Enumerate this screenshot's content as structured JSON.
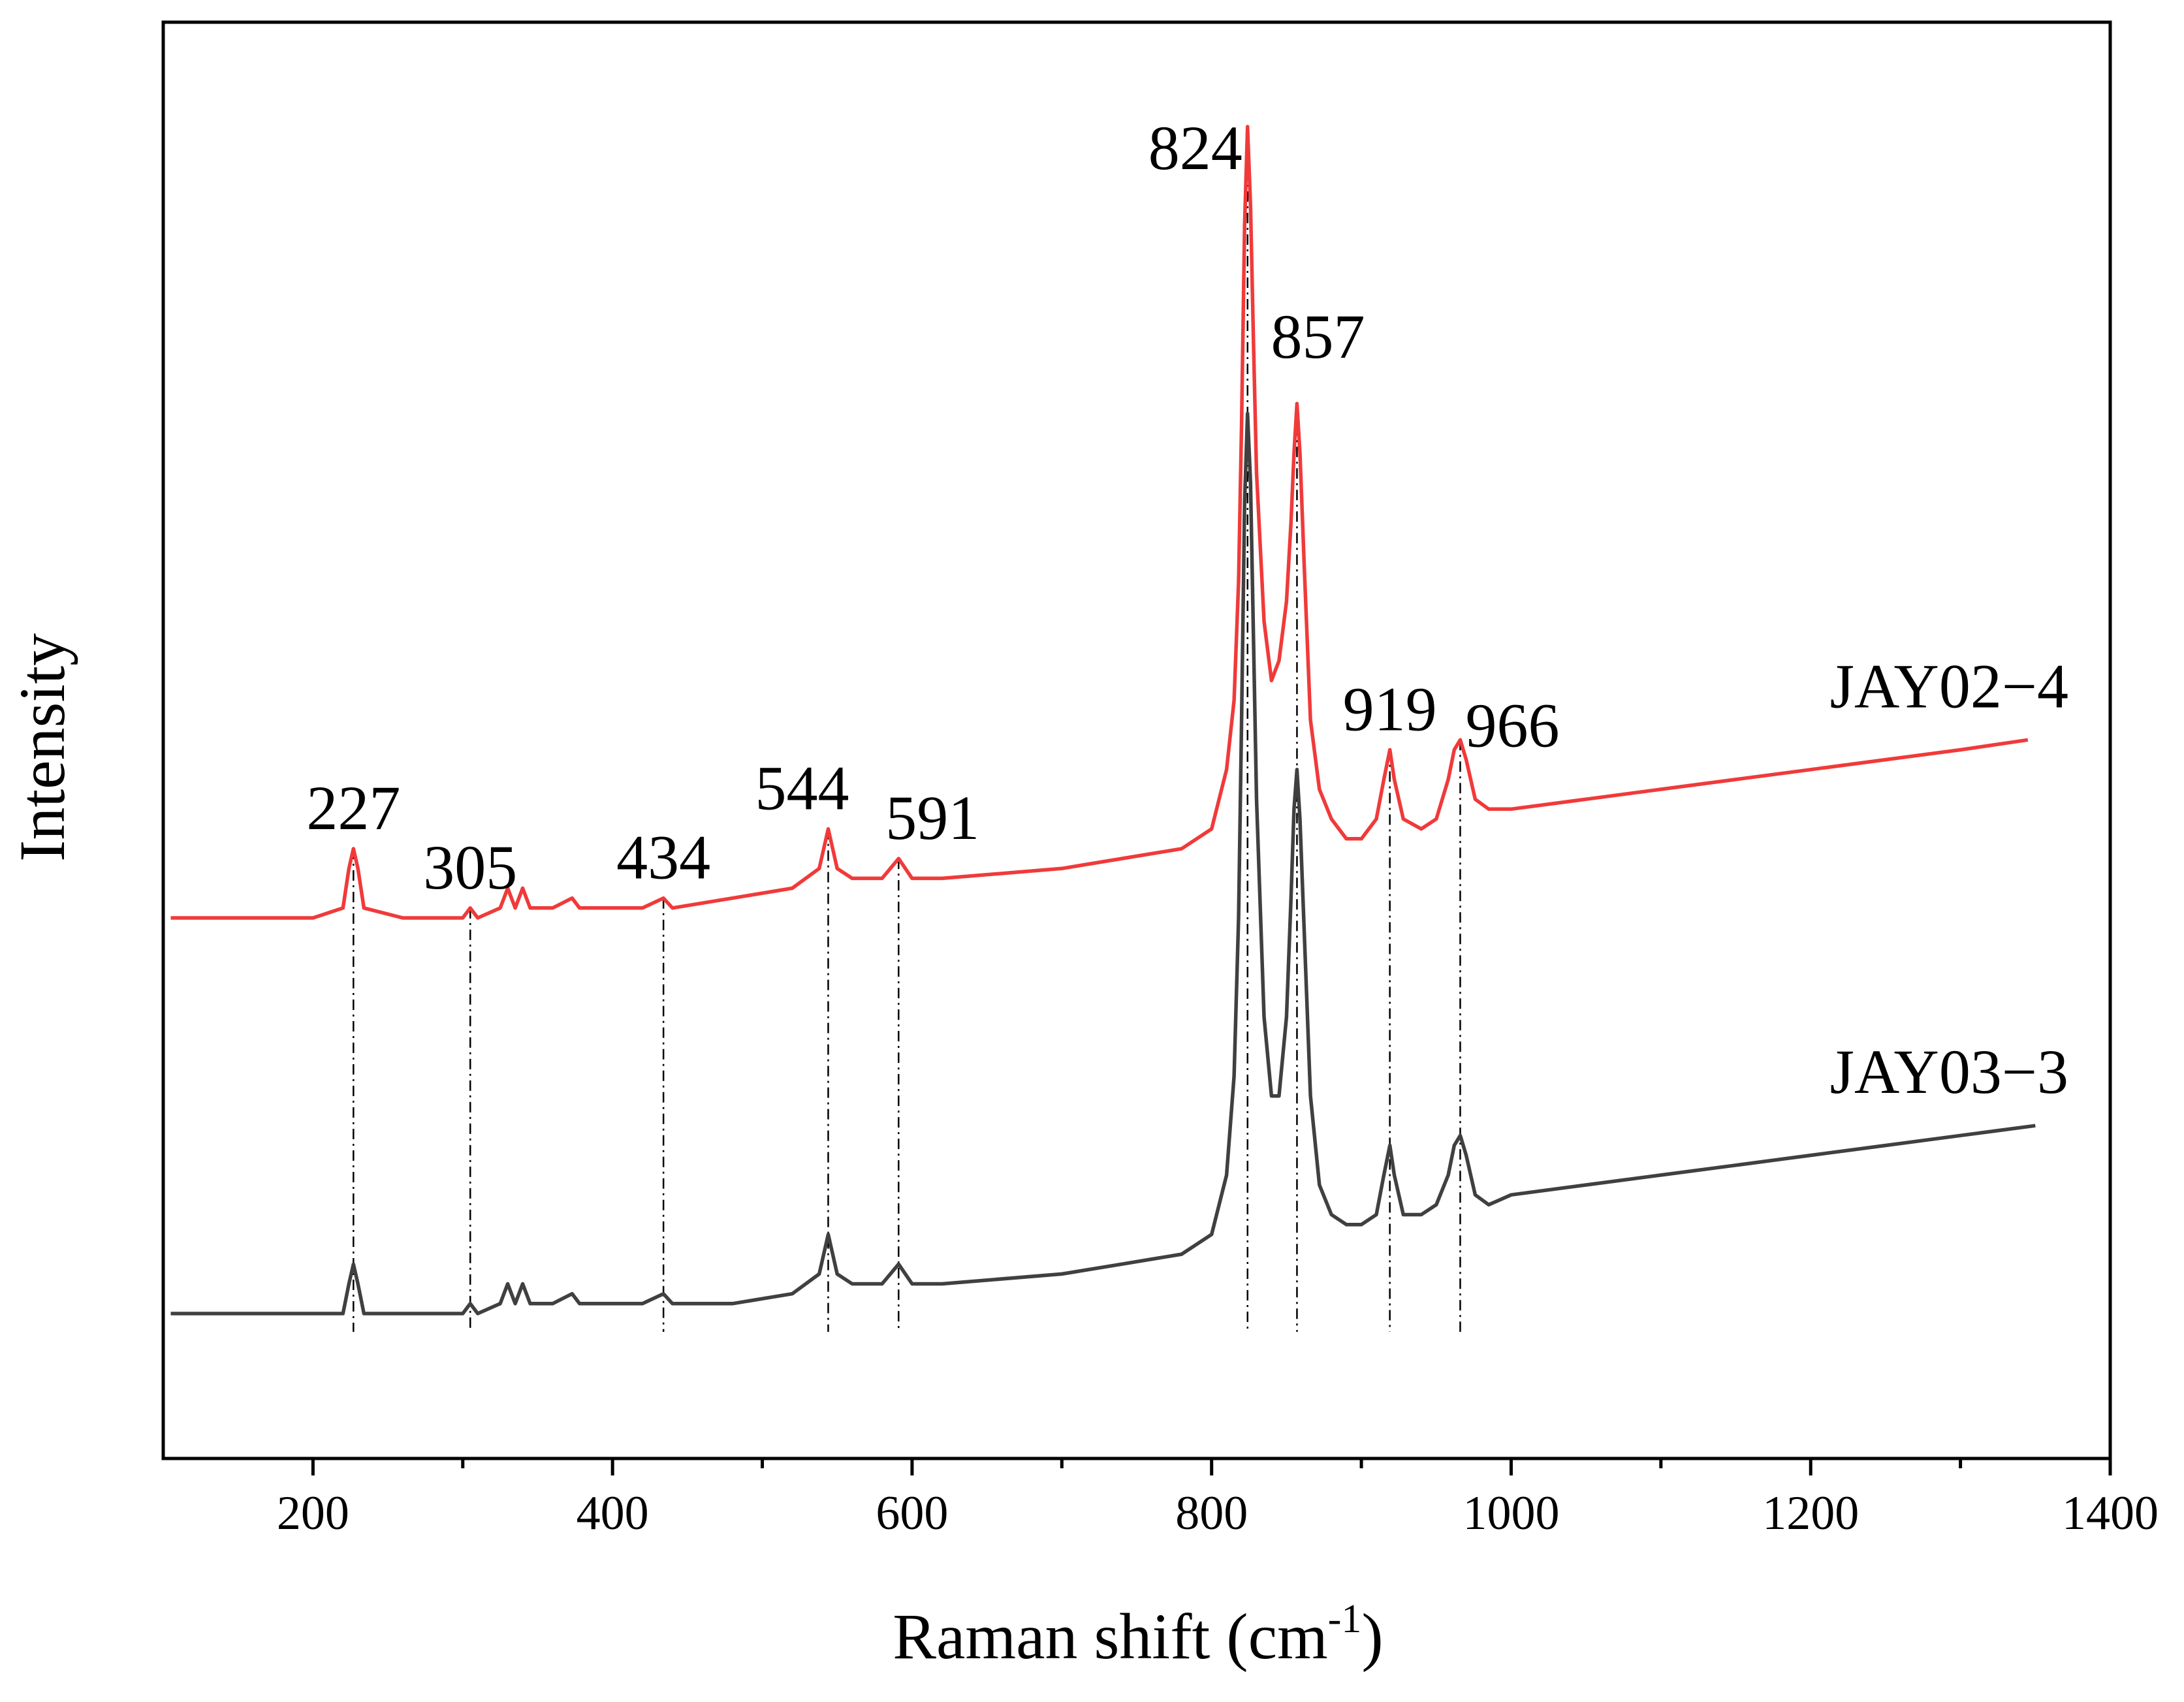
{
  "chart_data": {
    "type": "line",
    "title": "",
    "xlabel": "Raman shift (cm",
    "xlabel_superscript": "-1",
    "xlabel_suffix": ")",
    "ylabel": "Intensity",
    "xlim": [
      100,
      1400
    ],
    "x_ticks": [
      200,
      400,
      600,
      800,
      1000,
      1200,
      1400
    ],
    "x_ticks_minor": [
      300,
      500,
      700,
      900,
      1100,
      1300
    ],
    "y_ticks": [],
    "grid": false,
    "series": [
      {
        "name": "JAY02−4",
        "color": "#f03a3a",
        "points": [
          [
            105,
            0.4
          ],
          [
            150,
            0.4
          ],
          [
            200,
            0.4
          ],
          [
            220,
            0.41
          ],
          [
            224,
            0.45
          ],
          [
            227,
            0.47
          ],
          [
            230,
            0.45
          ],
          [
            234,
            0.41
          ],
          [
            260,
            0.4
          ],
          [
            300,
            0.4
          ],
          [
            305,
            0.41
          ],
          [
            310,
            0.4
          ],
          [
            325,
            0.41
          ],
          [
            330,
            0.43
          ],
          [
            335,
            0.41
          ],
          [
            340,
            0.43
          ],
          [
            345,
            0.41
          ],
          [
            360,
            0.41
          ],
          [
            373,
            0.42
          ],
          [
            378,
            0.41
          ],
          [
            400,
            0.41
          ],
          [
            420,
            0.41
          ],
          [
            434,
            0.42
          ],
          [
            440,
            0.41
          ],
          [
            480,
            0.42
          ],
          [
            520,
            0.43
          ],
          [
            538,
            0.45
          ],
          [
            544,
            0.49
          ],
          [
            550,
            0.45
          ],
          [
            560,
            0.44
          ],
          [
            580,
            0.44
          ],
          [
            591,
            0.46
          ],
          [
            600,
            0.44
          ],
          [
            620,
            0.44
          ],
          [
            700,
            0.45
          ],
          [
            740,
            0.46
          ],
          [
            780,
            0.47
          ],
          [
            800,
            0.49
          ],
          [
            810,
            0.55
          ],
          [
            815,
            0.62
          ],
          [
            818,
            0.74
          ],
          [
            820,
            0.9
          ],
          [
            822,
            1.1
          ],
          [
            824,
            1.2
          ],
          [
            826,
            1.12
          ],
          [
            828,
            0.98
          ],
          [
            830,
            0.85
          ],
          [
            835,
            0.7
          ],
          [
            840,
            0.64
          ],
          [
            845,
            0.66
          ],
          [
            850,
            0.72
          ],
          [
            853,
            0.8
          ],
          [
            855,
            0.87
          ],
          [
            857,
            0.92
          ],
          [
            859,
            0.87
          ],
          [
            862,
            0.75
          ],
          [
            866,
            0.6
          ],
          [
            872,
            0.53
          ],
          [
            880,
            0.5
          ],
          [
            890,
            0.48
          ],
          [
            900,
            0.48
          ],
          [
            910,
            0.5
          ],
          [
            915,
            0.54
          ],
          [
            919,
            0.57
          ],
          [
            922,
            0.54
          ],
          [
            928,
            0.5
          ],
          [
            940,
            0.49
          ],
          [
            950,
            0.5
          ],
          [
            958,
            0.54
          ],
          [
            962,
            0.57
          ],
          [
            966,
            0.58
          ],
          [
            970,
            0.56
          ],
          [
            976,
            0.52
          ],
          [
            985,
            0.51
          ],
          [
            1000,
            0.51
          ],
          [
            1050,
            0.52
          ],
          [
            1100,
            0.53
          ],
          [
            1150,
            0.54
          ],
          [
            1200,
            0.55
          ],
          [
            1250,
            0.56
          ],
          [
            1300,
            0.57
          ],
          [
            1345,
            0.58
          ]
        ]
      },
      {
        "name": "JAY03−3",
        "color": "#404040",
        "points": [
          [
            105,
            0.0
          ],
          [
            150,
            0.0
          ],
          [
            200,
            0.0
          ],
          [
            220,
            0.0
          ],
          [
            224,
            0.03
          ],
          [
            227,
            0.05
          ],
          [
            230,
            0.03
          ],
          [
            234,
            0.0
          ],
          [
            260,
            0.0
          ],
          [
            300,
            0.0
          ],
          [
            305,
            0.01
          ],
          [
            310,
            0.0
          ],
          [
            325,
            0.01
          ],
          [
            330,
            0.03
          ],
          [
            335,
            0.01
          ],
          [
            340,
            0.03
          ],
          [
            345,
            0.01
          ],
          [
            360,
            0.01
          ],
          [
            373,
            0.02
          ],
          [
            378,
            0.01
          ],
          [
            400,
            0.01
          ],
          [
            420,
            0.01
          ],
          [
            434,
            0.02
          ],
          [
            440,
            0.01
          ],
          [
            480,
            0.01
          ],
          [
            520,
            0.02
          ],
          [
            538,
            0.04
          ],
          [
            544,
            0.08
          ],
          [
            550,
            0.04
          ],
          [
            560,
            0.03
          ],
          [
            580,
            0.03
          ],
          [
            591,
            0.05
          ],
          [
            600,
            0.03
          ],
          [
            620,
            0.03
          ],
          [
            700,
            0.04
          ],
          [
            740,
            0.05
          ],
          [
            780,
            0.06
          ],
          [
            800,
            0.08
          ],
          [
            810,
            0.14
          ],
          [
            815,
            0.24
          ],
          [
            818,
            0.4
          ],
          [
            820,
            0.6
          ],
          [
            822,
            0.82
          ],
          [
            824,
            0.91
          ],
          [
            826,
            0.84
          ],
          [
            828,
            0.68
          ],
          [
            830,
            0.52
          ],
          [
            835,
            0.3
          ],
          [
            840,
            0.22
          ],
          [
            845,
            0.22
          ],
          [
            850,
            0.3
          ],
          [
            853,
            0.42
          ],
          [
            855,
            0.51
          ],
          [
            857,
            0.55
          ],
          [
            859,
            0.5
          ],
          [
            862,
            0.38
          ],
          [
            866,
            0.22
          ],
          [
            872,
            0.13
          ],
          [
            880,
            0.1
          ],
          [
            890,
            0.09
          ],
          [
            900,
            0.09
          ],
          [
            910,
            0.1
          ],
          [
            915,
            0.14
          ],
          [
            919,
            0.17
          ],
          [
            922,
            0.14
          ],
          [
            928,
            0.1
          ],
          [
            940,
            0.1
          ],
          [
            950,
            0.11
          ],
          [
            958,
            0.14
          ],
          [
            962,
            0.17
          ],
          [
            966,
            0.18
          ],
          [
            970,
            0.16
          ],
          [
            976,
            0.12
          ],
          [
            985,
            0.11
          ],
          [
            1000,
            0.12
          ],
          [
            1050,
            0.13
          ],
          [
            1100,
            0.14
          ],
          [
            1150,
            0.15
          ],
          [
            1200,
            0.16
          ],
          [
            1250,
            0.17
          ],
          [
            1300,
            0.18
          ],
          [
            1350,
            0.19
          ]
        ]
      }
    ],
    "peaks": [
      {
        "x": 227,
        "label": "227"
      },
      {
        "x": 305,
        "label": "305"
      },
      {
        "x": 434,
        "label": "434"
      },
      {
        "x": 544,
        "label": "544"
      },
      {
        "x": 591,
        "label": "591"
      },
      {
        "x": 824,
        "label": "824"
      },
      {
        "x": 857,
        "label": "857"
      },
      {
        "x": 919,
        "label": "919"
      },
      {
        "x": 966,
        "label": "966"
      }
    ]
  }
}
